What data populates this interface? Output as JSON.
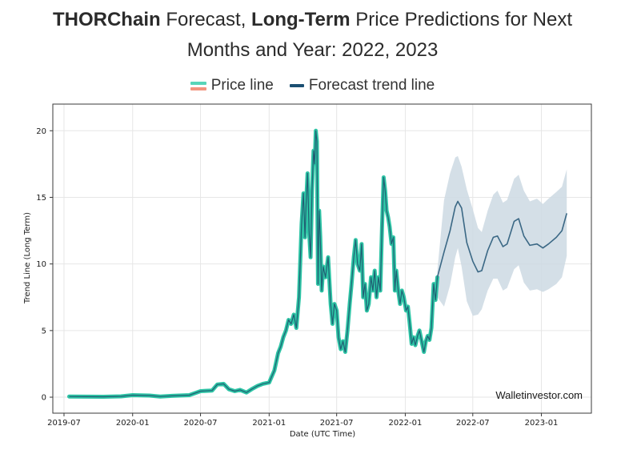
{
  "header": {
    "title_b1": "THORChain",
    "title_t1": " Forecast, ",
    "title_b2": "Long-Term",
    "title_t2": " Price Predictions for Next",
    "title_line2": "Months and Year: 2022, 2023"
  },
  "legend": {
    "price_label": "Price line",
    "trend_label": "Forecast trend line"
  },
  "colors": {
    "price_line": "#2ec4a5",
    "price_core": "#1f5f73",
    "trend_line": "#3b6885",
    "band_fill": "#cdd9e3",
    "grid": "#e6e6e6"
  },
  "chart_data": {
    "type": "line",
    "xlabel": "Date (UTC Time)",
    "ylabel": "Trend Line (Long Term)",
    "x_range": [
      "2019-06-01",
      "2023-05-15"
    ],
    "ylim": [
      -1.2,
      22
    ],
    "x_ticks": [
      "2019-07",
      "2020-01",
      "2020-07",
      "2021-01",
      "2021-07",
      "2022-01",
      "2022-07",
      "2023-01"
    ],
    "y_ticks": [
      0,
      5,
      10,
      15,
      20
    ],
    "grid": true,
    "watermark": "Walletinvestor.com",
    "series": [
      {
        "name": "Price line",
        "points": [
          [
            "2019-07-15",
            0.05
          ],
          [
            "2019-09-01",
            0.04
          ],
          [
            "2019-10-15",
            0.03
          ],
          [
            "2019-12-01",
            0.06
          ],
          [
            "2020-01-01",
            0.15
          ],
          [
            "2020-02-15",
            0.12
          ],
          [
            "2020-03-15",
            0.05
          ],
          [
            "2020-04-15",
            0.1
          ],
          [
            "2020-06-01",
            0.15
          ],
          [
            "2020-07-01",
            0.45
          ],
          [
            "2020-08-01",
            0.5
          ],
          [
            "2020-08-15",
            0.95
          ],
          [
            "2020-09-01",
            1.0
          ],
          [
            "2020-09-15",
            0.6
          ],
          [
            "2020-10-01",
            0.45
          ],
          [
            "2020-10-15",
            0.55
          ],
          [
            "2020-11-01",
            0.35
          ],
          [
            "2020-11-15",
            0.6
          ],
          [
            "2020-12-01",
            0.85
          ],
          [
            "2020-12-15",
            1.0
          ],
          [
            "2021-01-01",
            1.1
          ],
          [
            "2021-01-15",
            2.0
          ],
          [
            "2021-01-25",
            3.3
          ],
          [
            "2021-02-01",
            3.8
          ],
          [
            "2021-02-08",
            4.5
          ],
          [
            "2021-02-15",
            5.0
          ],
          [
            "2021-02-22",
            5.8
          ],
          [
            "2021-03-01",
            5.5
          ],
          [
            "2021-03-08",
            6.2
          ],
          [
            "2021-03-15",
            5.2
          ],
          [
            "2021-03-22",
            7.5
          ],
          [
            "2021-03-29",
            13.0
          ],
          [
            "2021-04-03",
            15.3
          ],
          [
            "2021-04-07",
            12.0
          ],
          [
            "2021-04-10",
            14.5
          ],
          [
            "2021-04-14",
            16.8
          ],
          [
            "2021-04-18",
            12.5
          ],
          [
            "2021-04-22",
            10.5
          ],
          [
            "2021-04-26",
            15.5
          ],
          [
            "2021-04-30",
            18.5
          ],
          [
            "2021-05-03",
            17.5
          ],
          [
            "2021-05-06",
            20.0
          ],
          [
            "2021-05-09",
            19.2
          ],
          [
            "2021-05-12",
            8.5
          ],
          [
            "2021-05-15",
            14.0
          ],
          [
            "2021-05-18",
            12.0
          ],
          [
            "2021-05-22",
            8.0
          ],
          [
            "2021-05-26",
            9.8
          ],
          [
            "2021-06-01",
            9.0
          ],
          [
            "2021-06-08",
            10.5
          ],
          [
            "2021-06-15",
            7.0
          ],
          [
            "2021-06-20",
            5.5
          ],
          [
            "2021-06-25",
            7.0
          ],
          [
            "2021-07-01",
            6.5
          ],
          [
            "2021-07-06",
            4.5
          ],
          [
            "2021-07-12",
            3.6
          ],
          [
            "2021-07-18",
            4.2
          ],
          [
            "2021-07-24",
            3.4
          ],
          [
            "2021-07-30",
            5.0
          ],
          [
            "2021-08-05",
            7.0
          ],
          [
            "2021-08-10",
            8.5
          ],
          [
            "2021-08-16",
            10.5
          ],
          [
            "2021-08-21",
            11.8
          ],
          [
            "2021-08-26",
            10.0
          ],
          [
            "2021-09-01",
            9.5
          ],
          [
            "2021-09-06",
            11.5
          ],
          [
            "2021-09-10",
            7.5
          ],
          [
            "2021-09-15",
            8.5
          ],
          [
            "2021-09-20",
            6.5
          ],
          [
            "2021-09-25",
            7.0
          ],
          [
            "2021-10-01",
            9.0
          ],
          [
            "2021-10-06",
            8.0
          ],
          [
            "2021-10-11",
            9.5
          ],
          [
            "2021-10-16",
            7.5
          ],
          [
            "2021-10-21",
            9.0
          ],
          [
            "2021-10-26",
            8.0
          ],
          [
            "2021-10-31",
            13.0
          ],
          [
            "2021-11-04",
            16.5
          ],
          [
            "2021-11-08",
            15.5
          ],
          [
            "2021-11-12",
            14.0
          ],
          [
            "2021-11-16",
            13.5
          ],
          [
            "2021-11-20",
            12.8
          ],
          [
            "2021-11-25",
            11.5
          ],
          [
            "2021-11-30",
            12.0
          ],
          [
            "2021-12-04",
            8.0
          ],
          [
            "2021-12-08",
            9.5
          ],
          [
            "2021-12-13",
            8.0
          ],
          [
            "2021-12-18",
            7.0
          ],
          [
            "2021-12-23",
            8.0
          ],
          [
            "2021-12-28",
            7.5
          ],
          [
            "2022-01-03",
            6.5
          ],
          [
            "2022-01-08",
            6.8
          ],
          [
            "2022-01-13",
            5.5
          ],
          [
            "2022-01-18",
            4.0
          ],
          [
            "2022-01-23",
            4.5
          ],
          [
            "2022-01-28",
            3.9
          ],
          [
            "2022-02-03",
            4.6
          ],
          [
            "2022-02-08",
            5.0
          ],
          [
            "2022-02-14",
            4.2
          ],
          [
            "2022-02-20",
            3.4
          ],
          [
            "2022-02-25",
            4.2
          ],
          [
            "2022-03-02",
            4.6
          ],
          [
            "2022-03-07",
            4.3
          ],
          [
            "2022-03-12",
            5.2
          ],
          [
            "2022-03-18",
            8.5
          ],
          [
            "2022-03-23",
            7.3
          ],
          [
            "2022-03-28",
            9.0
          ]
        ]
      },
      {
        "name": "Forecast trend line",
        "points": [
          [
            "2022-03-28",
            9.0
          ],
          [
            "2022-04-15",
            10.9
          ],
          [
            "2022-05-01",
            12.5
          ],
          [
            "2022-05-15",
            14.3
          ],
          [
            "2022-05-22",
            14.7
          ],
          [
            "2022-06-01",
            14.2
          ],
          [
            "2022-06-15",
            11.6
          ],
          [
            "2022-07-01",
            10.2
          ],
          [
            "2022-07-15",
            9.4
          ],
          [
            "2022-07-25",
            9.5
          ],
          [
            "2022-08-10",
            11.0
          ],
          [
            "2022-08-25",
            12.0
          ],
          [
            "2022-09-05",
            12.1
          ],
          [
            "2022-09-20",
            11.3
          ],
          [
            "2022-10-01",
            11.5
          ],
          [
            "2022-10-20",
            13.2
          ],
          [
            "2022-11-01",
            13.4
          ],
          [
            "2022-11-15",
            12.1
          ],
          [
            "2022-12-01",
            11.4
          ],
          [
            "2022-12-20",
            11.5
          ],
          [
            "2023-01-05",
            11.2
          ],
          [
            "2023-01-20",
            11.5
          ],
          [
            "2023-02-10",
            12.0
          ],
          [
            "2023-02-25",
            12.5
          ],
          [
            "2023-03-10",
            13.8
          ]
        ],
        "band": [
          [
            "2022-03-28",
            7.5,
            9.5
          ],
          [
            "2022-04-15",
            6.8,
            14.8
          ],
          [
            "2022-05-01",
            8.4,
            16.8
          ],
          [
            "2022-05-15",
            10.5,
            18.0
          ],
          [
            "2022-05-22",
            11.2,
            18.1
          ],
          [
            "2022-06-01",
            9.8,
            17.3
          ],
          [
            "2022-06-15",
            7.2,
            15.6
          ],
          [
            "2022-07-01",
            6.1,
            14.1
          ],
          [
            "2022-07-15",
            6.2,
            12.7
          ],
          [
            "2022-07-25",
            6.6,
            12.4
          ],
          [
            "2022-08-10",
            8.0,
            14.0
          ],
          [
            "2022-08-25",
            8.9,
            15.2
          ],
          [
            "2022-09-05",
            8.9,
            15.5
          ],
          [
            "2022-09-20",
            8.0,
            14.6
          ],
          [
            "2022-10-01",
            8.2,
            14.8
          ],
          [
            "2022-10-20",
            9.6,
            16.4
          ],
          [
            "2022-11-01",
            9.9,
            16.7
          ],
          [
            "2022-11-15",
            8.6,
            15.5
          ],
          [
            "2022-12-01",
            8.0,
            14.7
          ],
          [
            "2022-12-20",
            8.1,
            14.9
          ],
          [
            "2023-01-05",
            7.9,
            14.5
          ],
          [
            "2023-01-20",
            8.1,
            14.9
          ],
          [
            "2023-02-10",
            8.5,
            15.4
          ],
          [
            "2023-02-25",
            9.0,
            15.8
          ],
          [
            "2023-03-10",
            10.6,
            17.1
          ]
        ]
      }
    ]
  }
}
